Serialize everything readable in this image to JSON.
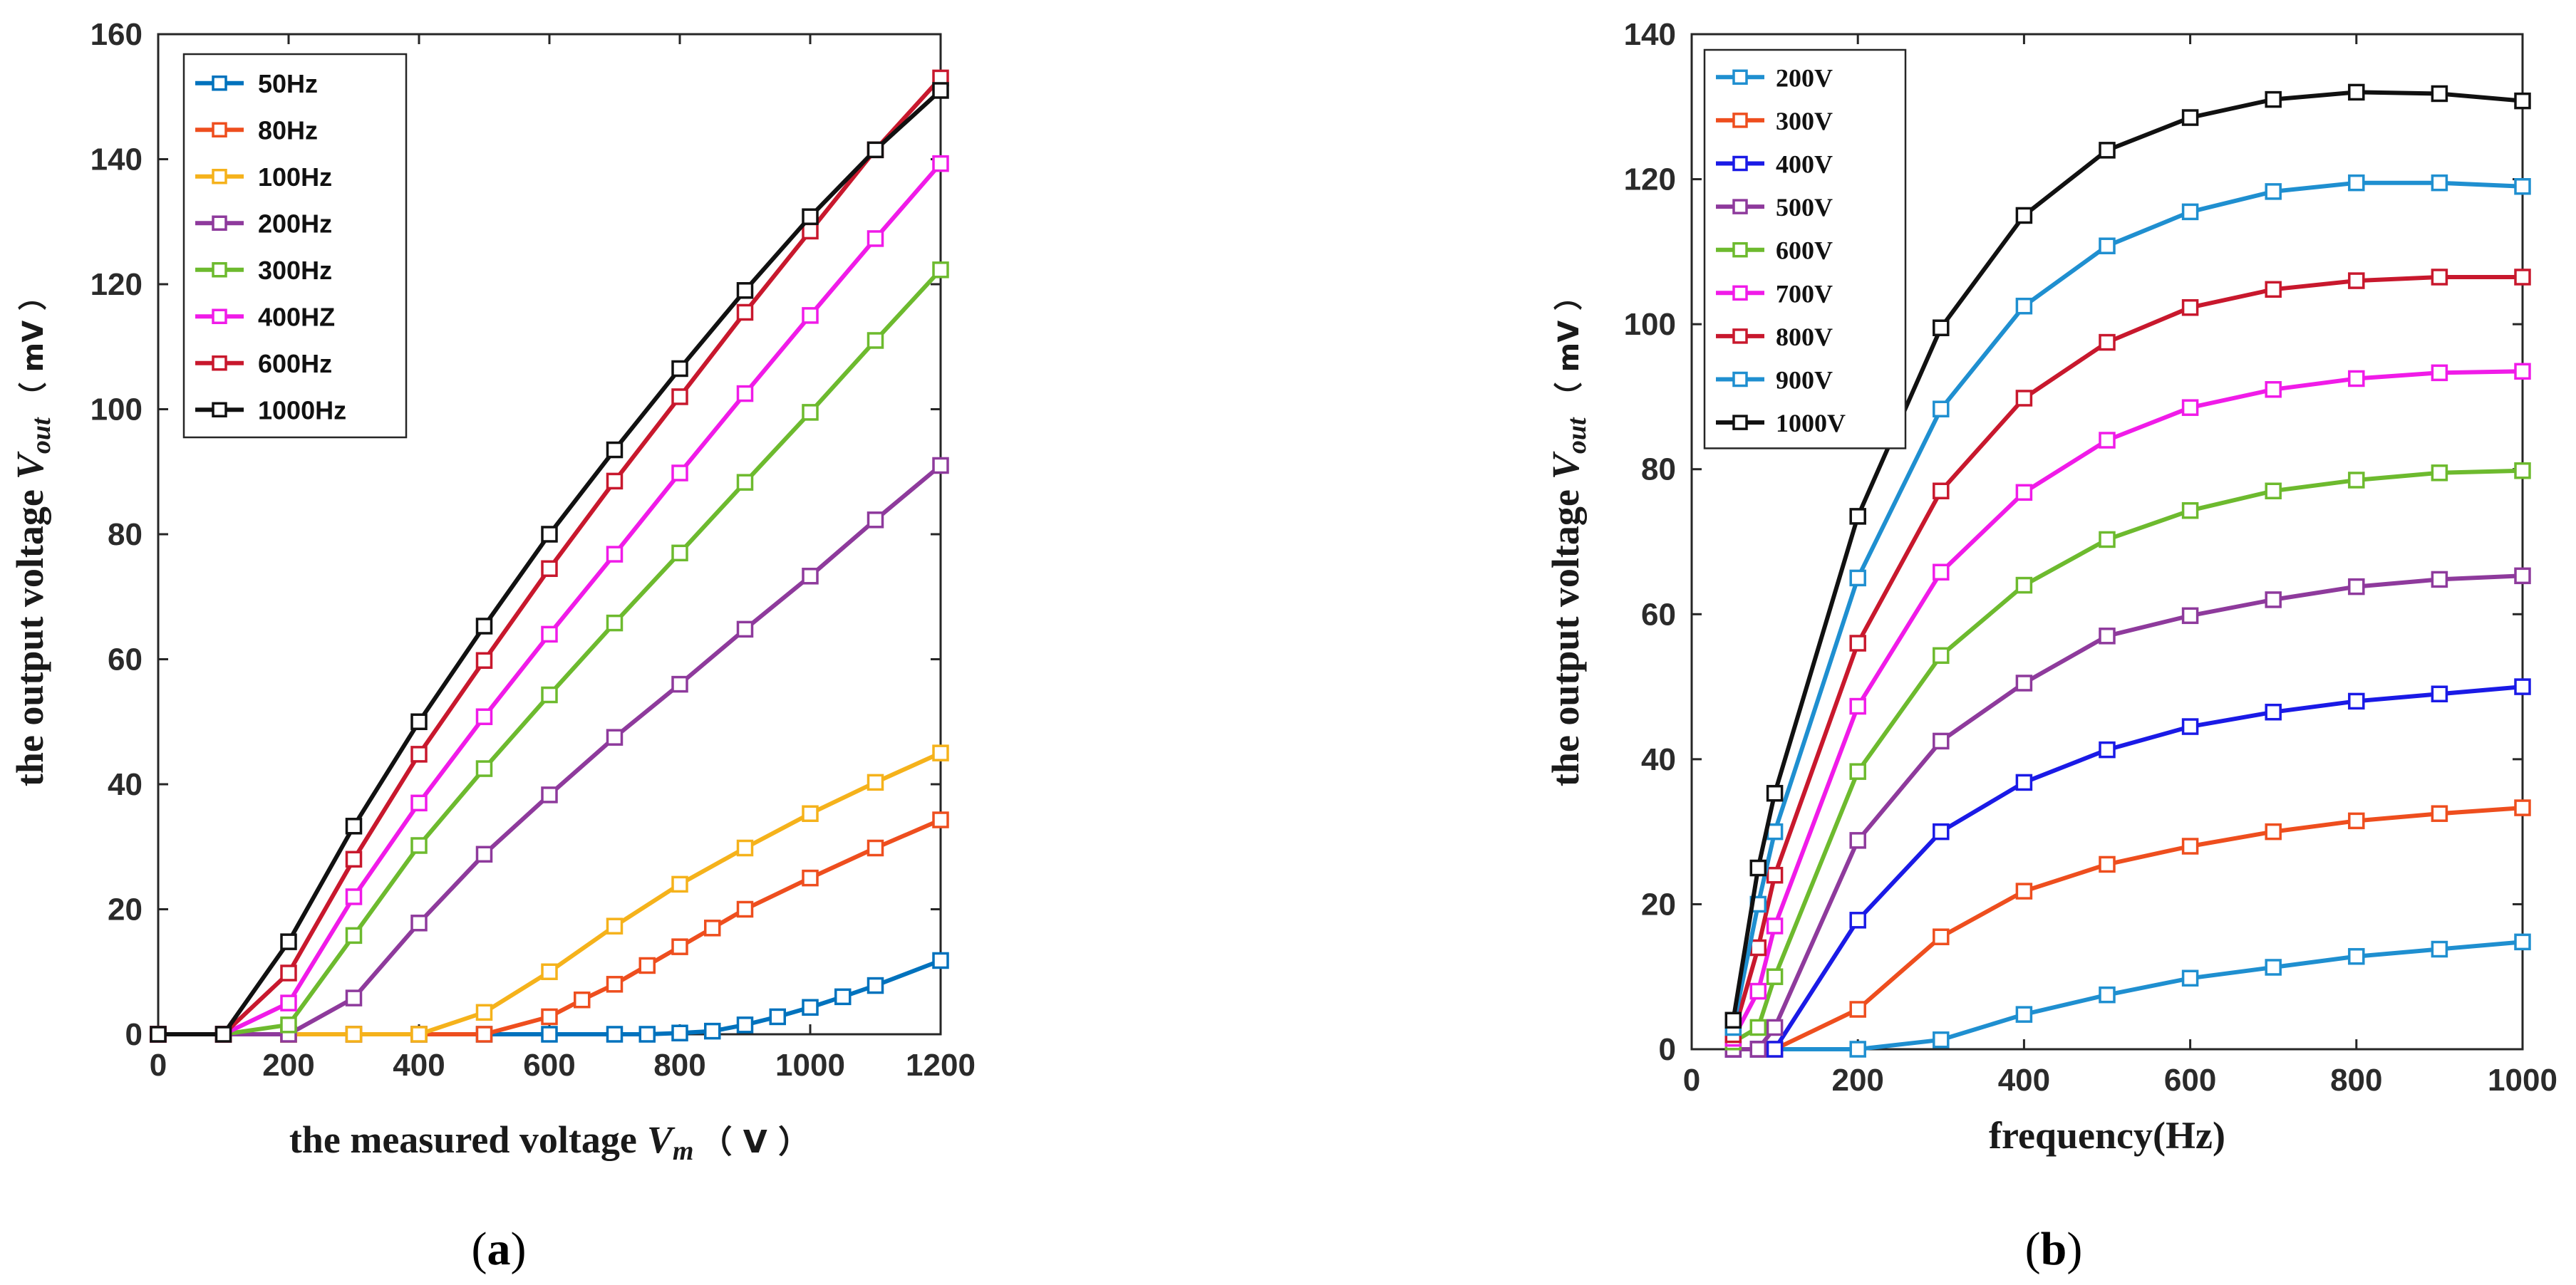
{
  "captions": [
    "a",
    "b"
  ],
  "chart_data": [
    {
      "type": "line",
      "panel": "a",
      "xlabel": "the measured voltage",
      "xlabel_symbol": "V",
      "xlabel_sub": "m",
      "xlabel_unit": "（ V ）",
      "ylabel": "the output voltage",
      "ylabel_symbol": "V",
      "ylabel_sub": "out",
      "ylabel_unit": "（ mV ）",
      "xlim": [
        0,
        1200
      ],
      "ylim": [
        0,
        160
      ],
      "xticks": [
        0,
        200,
        400,
        600,
        800,
        1000,
        1200
      ],
      "yticks": [
        0,
        20,
        40,
        60,
        80,
        100,
        120,
        140,
        160
      ],
      "legend_position": "top-left",
      "series": [
        {
          "name": "50Hz",
          "color": "#0072BD",
          "x": [
            0,
            100,
            200,
            300,
            400,
            500,
            600,
            700,
            750,
            800,
            850,
            900,
            950,
            1000,
            1050,
            1100,
            1200
          ],
          "y": [
            0,
            0,
            0,
            0,
            0,
            0,
            0,
            0,
            0,
            0.2,
            0.5,
            1.5,
            2.8,
            4.3,
            6,
            7.8,
            11.8
          ]
        },
        {
          "name": "80Hz",
          "color": "#EE4E1E",
          "x": [
            0,
            100,
            200,
            300,
            400,
            500,
            600,
            650,
            700,
            750,
            800,
            850,
            900,
            1000,
            1100,
            1200
          ],
          "y": [
            0,
            0,
            0,
            0,
            0,
            0,
            2.8,
            5.5,
            8,
            11,
            14,
            17,
            20,
            25,
            29.8,
            34.3
          ]
        },
        {
          "name": "100Hz",
          "color": "#F5B21B",
          "x": [
            0,
            100,
            200,
            300,
            400,
            500,
            600,
            700,
            800,
            900,
            1000,
            1100,
            1200
          ],
          "y": [
            0,
            0,
            0,
            0,
            0,
            3.5,
            10,
            17.3,
            24,
            29.8,
            35.3,
            40.3,
            45
          ]
        },
        {
          "name": "200Hz",
          "color": "#8E3A9C",
          "x": [
            0,
            100,
            200,
            300,
            400,
            500,
            600,
            700,
            800,
            900,
            1000,
            1100,
            1200
          ],
          "y": [
            0,
            0,
            0,
            5.8,
            17.8,
            28.8,
            38.3,
            47.5,
            56,
            64.8,
            73.3,
            82.3,
            91
          ]
        },
        {
          "name": "300Hz",
          "color": "#6DBA2E",
          "x": [
            0,
            100,
            200,
            300,
            400,
            500,
            600,
            700,
            800,
            900,
            1000,
            1100,
            1200
          ],
          "y": [
            0,
            0,
            1.5,
            15.8,
            30.2,
            42.5,
            54.3,
            65.8,
            77,
            88.3,
            99.5,
            111,
            122.3
          ]
        },
        {
          "name": "400HZ",
          "color": "#F01BE8",
          "x": [
            0,
            100,
            200,
            300,
            400,
            500,
            600,
            700,
            800,
            900,
            1000,
            1100,
            1200
          ],
          "y": [
            0,
            0,
            5,
            22,
            37,
            50.8,
            64,
            76.8,
            89.8,
            102.5,
            115,
            127.3,
            139.3
          ]
        },
        {
          "name": "600Hz",
          "color": "#C8182D",
          "x": [
            0,
            100,
            200,
            300,
            400,
            500,
            600,
            700,
            800,
            900,
            1000,
            1100,
            1200
          ],
          "y": [
            0,
            0,
            9.8,
            28,
            44.8,
            59.8,
            74.5,
            88.5,
            102,
            115.5,
            128.5,
            141.5,
            153
          ]
        },
        {
          "name": "1000Hz",
          "color": "#111111",
          "x": [
            0,
            100,
            200,
            300,
            400,
            500,
            600,
            700,
            800,
            900,
            1000,
            1100,
            1200
          ],
          "y": [
            0,
            0,
            14.8,
            33.3,
            50,
            65.3,
            80,
            93.5,
            106.5,
            119,
            130.8,
            141.5,
            151
          ]
        }
      ]
    },
    {
      "type": "line",
      "panel": "b",
      "xlabel": "frequency(Hz)",
      "ylabel": "the output voltage",
      "ylabel_symbol": "V",
      "ylabel_sub": "out",
      "ylabel_unit": "（ mV ）",
      "xlim": [
        0,
        1000
      ],
      "ylim": [
        0,
        140
      ],
      "xticks": [
        0,
        200,
        400,
        600,
        800,
        1000
      ],
      "yticks": [
        0,
        20,
        40,
        60,
        80,
        100,
        120,
        140
      ],
      "legend_position": "top-left",
      "series": [
        {
          "name": "200V",
          "color": "#1F8FD0",
          "x": [
            50,
            80,
            100,
            200,
            300,
            400,
            500,
            600,
            700,
            800,
            900,
            1000
          ],
          "y": [
            0,
            0,
            0,
            0,
            1.3,
            4.8,
            7.5,
            9.8,
            11.3,
            12.8,
            13.8,
            14.8
          ]
        },
        {
          "name": "300V",
          "color": "#EE4E1E",
          "x": [
            50,
            80,
            100,
            200,
            300,
            400,
            500,
            600,
            700,
            800,
            900,
            1000
          ],
          "y": [
            0,
            0,
            0,
            5.5,
            15.5,
            21.8,
            25.5,
            28,
            30,
            31.5,
            32.5,
            33.3
          ]
        },
        {
          "name": "400V",
          "color": "#1A1AE6",
          "x": [
            50,
            80,
            100,
            200,
            300,
            400,
            500,
            600,
            700,
            800,
            900,
            1000
          ],
          "y": [
            0,
            0,
            0,
            17.8,
            30,
            36.8,
            41.3,
            44.5,
            46.5,
            48,
            49,
            50
          ]
        },
        {
          "name": "500V",
          "color": "#8E3A9C",
          "x": [
            50,
            80,
            100,
            200,
            300,
            400,
            500,
            600,
            700,
            800,
            900,
            1000
          ],
          "y": [
            0,
            0,
            3,
            28.8,
            42.5,
            50.5,
            57,
            59.8,
            62,
            63.8,
            64.8,
            65.3
          ]
        },
        {
          "name": "600V",
          "color": "#6DBA2E",
          "x": [
            50,
            80,
            100,
            200,
            300,
            400,
            500,
            600,
            700,
            800,
            900,
            1000
          ],
          "y": [
            1,
            3,
            10,
            38.3,
            54.3,
            64,
            70.3,
            74.3,
            77,
            78.5,
            79.5,
            79.8
          ]
        },
        {
          "name": "700V",
          "color": "#F01BE8",
          "x": [
            50,
            80,
            100,
            200,
            300,
            400,
            500,
            600,
            700,
            800,
            900,
            1000
          ],
          "y": [
            1.5,
            8,
            17,
            47.3,
            65.8,
            76.8,
            84,
            88.5,
            91,
            92.5,
            93.3,
            93.5
          ]
        },
        {
          "name": "800V",
          "color": "#C8182D",
          "x": [
            50,
            80,
            100,
            200,
            300,
            400,
            500,
            600,
            700,
            800,
            900,
            1000
          ],
          "y": [
            2,
            14,
            24,
            56,
            77,
            89.8,
            97.5,
            102.3,
            104.8,
            106,
            106.5,
            106.5
          ]
        },
        {
          "name": "900V",
          "color": "#1F8FD0",
          "x": [
            50,
            80,
            100,
            200,
            300,
            400,
            500,
            600,
            700,
            800,
            900,
            1000
          ],
          "y": [
            3,
            20,
            30,
            65,
            88.3,
            102.5,
            110.8,
            115.5,
            118.3,
            119.5,
            119.5,
            119
          ]
        },
        {
          "name": "1000V",
          "color": "#111111",
          "x": [
            50,
            80,
            100,
            200,
            300,
            400,
            500,
            600,
            700,
            800,
            900,
            1000
          ],
          "y": [
            4,
            25,
            35.3,
            73.5,
            99.5,
            115,
            124,
            128.5,
            131,
            132,
            131.8,
            130.8
          ]
        }
      ]
    }
  ]
}
